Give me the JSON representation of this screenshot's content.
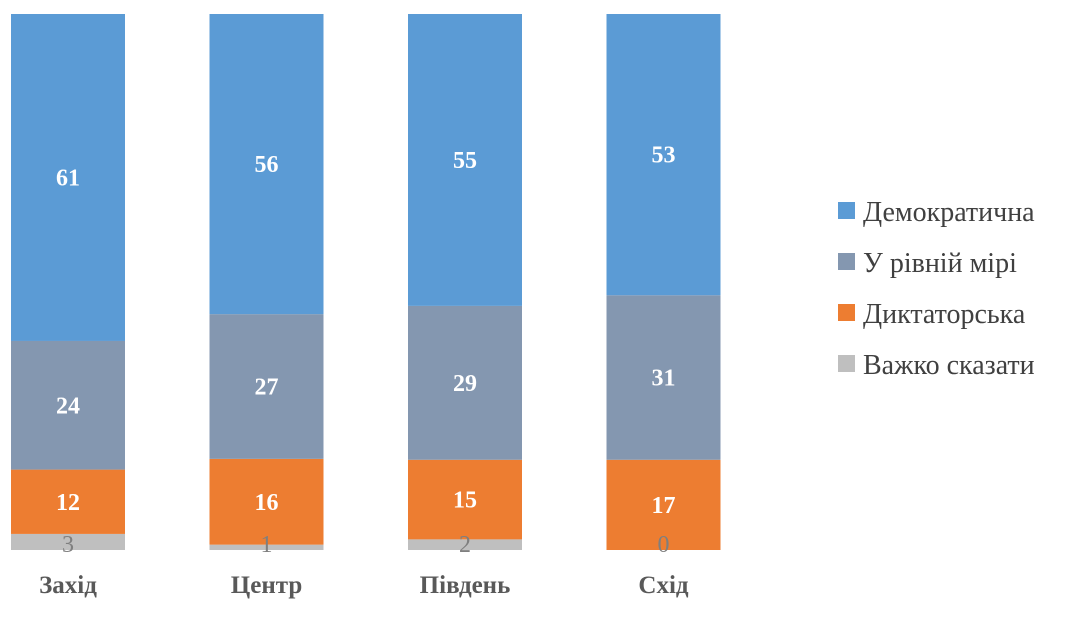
{
  "chart_data": {
    "type": "bar",
    "stacked": true,
    "percent_stacked": true,
    "categories": [
      "Захід",
      "Центр",
      "Південь",
      "Схід"
    ],
    "series": [
      {
        "name": "Важко сказати",
        "values": [
          3,
          1,
          2,
          0
        ],
        "color": "#bfbfbf"
      },
      {
        "name": "Диктаторська",
        "values": [
          12,
          16,
          15,
          17
        ],
        "color": "#ed7d31"
      },
      {
        "name": "У рівній мірі",
        "values": [
          24,
          27,
          29,
          31
        ],
        "color": "#8497b0"
      },
      {
        "name": "Демократична",
        "values": [
          61,
          56,
          55,
          53
        ],
        "color": "#5b9bd5"
      }
    ],
    "legend": {
      "position": "right",
      "order": [
        "Демократична",
        "У рівній мірі",
        "Диктаторська",
        "Важко сказати"
      ]
    },
    "title": "",
    "xlabel": "",
    "ylabel": "",
    "grid": false
  }
}
